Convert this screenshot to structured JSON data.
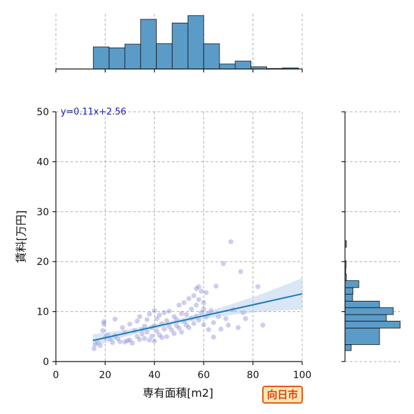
{
  "chart_data": {
    "type": "scatter",
    "xlabel": "専有面積[m2]",
    "ylabel": "賃料[万円]",
    "xlim": [
      0,
      100
    ],
    "ylim": [
      0,
      50
    ],
    "x_ticks": [
      0,
      20,
      40,
      60,
      80,
      100
    ],
    "y_ticks": [
      0,
      10,
      20,
      30,
      40,
      50
    ],
    "grid": true,
    "regression": {
      "label": "y=0.11x+2.56",
      "slope": 0.11,
      "intercept": 2.56,
      "x_range": [
        15,
        100
      ],
      "color": "#1f77b4",
      "band_color": "#a9c8e8"
    },
    "point_color": "#5a5ac8",
    "points": [
      [
        15.5,
        2.6
      ],
      [
        16,
        3.5
      ],
      [
        17,
        3.8
      ],
      [
        18,
        3.2
      ],
      [
        19,
        6.2
      ],
      [
        19.5,
        7.5
      ],
      [
        19.5,
        8.0
      ],
      [
        20,
        4.8
      ],
      [
        21,
        5.3
      ],
      [
        22,
        4.5
      ],
      [
        23,
        3.8
      ],
      [
        24,
        5.2
      ],
      [
        24,
        8.5
      ],
      [
        25,
        4.6
      ],
      [
        26,
        4.0
      ],
      [
        27,
        6.8
      ],
      [
        28,
        3.9
      ],
      [
        28,
        5.8
      ],
      [
        29,
        4.2
      ],
      [
        30,
        7.5
      ],
      [
        30,
        4.3
      ],
      [
        31,
        3.7
      ],
      [
        32,
        6.2
      ],
      [
        33,
        5.0
      ],
      [
        33,
        8.1
      ],
      [
        34,
        4.4
      ],
      [
        34,
        9.0
      ],
      [
        35,
        6.4
      ],
      [
        35,
        5.5
      ],
      [
        36,
        7.1
      ],
      [
        36,
        4.6
      ],
      [
        37,
        8.4
      ],
      [
        37,
        5.9
      ],
      [
        38,
        9.5
      ],
      [
        38,
        4.3
      ],
      [
        39,
        6.8
      ],
      [
        39,
        5.1
      ],
      [
        40,
        10.2
      ],
      [
        40,
        7.2
      ],
      [
        40,
        4.1
      ],
      [
        41,
        8.6
      ],
      [
        41,
        6.1
      ],
      [
        42,
        9.3
      ],
      [
        42,
        5.3
      ],
      [
        43,
        7.6
      ],
      [
        43,
        4.8
      ],
      [
        44,
        9.8
      ],
      [
        44,
        6.5
      ],
      [
        45,
        8.2
      ],
      [
        45,
        5.0
      ],
      [
        46,
        10.1
      ],
      [
        46,
        7.0
      ],
      [
        47,
        6.3
      ],
      [
        48,
        9.0
      ],
      [
        48,
        5.6
      ],
      [
        49,
        8.4
      ],
      [
        49,
        7.2
      ],
      [
        50,
        11.3
      ],
      [
        50,
        6.7
      ],
      [
        51,
        9.6
      ],
      [
        51,
        5.9
      ],
      [
        52,
        11.8
      ],
      [
        52,
        8.0
      ],
      [
        53,
        7.3
      ],
      [
        53,
        9.4
      ],
      [
        54,
        12.6
      ],
      [
        54,
        6.8
      ],
      [
        55,
        10.5
      ],
      [
        55,
        8.7
      ],
      [
        56,
        13.2
      ],
      [
        56,
        7.6
      ],
      [
        57,
        14.6
      ],
      [
        57,
        9.1
      ],
      [
        57,
        11.3
      ],
      [
        58,
        15.0
      ],
      [
        58,
        8.3
      ],
      [
        58,
        12.4
      ],
      [
        59,
        14.1
      ],
      [
        59,
        9.8
      ],
      [
        60,
        11.8
      ],
      [
        60,
        7.4
      ],
      [
        60,
        10.5
      ],
      [
        61,
        13.8
      ],
      [
        61,
        8.9
      ],
      [
        62,
        6.4
      ],
      [
        62,
        9.6
      ],
      [
        63,
        10.2
      ],
      [
        64,
        4.9
      ],
      [
        64,
        7.8
      ],
      [
        65,
        15.1
      ],
      [
        66,
        9.0
      ],
      [
        67,
        6.5
      ],
      [
        68,
        19.6
      ],
      [
        69,
        8.6
      ],
      [
        70,
        7.3
      ],
      [
        71,
        24.0
      ],
      [
        72,
        10.4
      ],
      [
        74,
        6.8
      ],
      [
        75,
        18.0
      ],
      [
        76,
        9.8
      ],
      [
        77,
        8.6
      ],
      [
        82,
        15.0
      ],
      [
        84,
        7.3
      ]
    ],
    "top_histogram": {
      "axis_range": [
        0,
        100
      ],
      "bin_edges": [
        15.2,
        21.6,
        28.0,
        34.4,
        40.8,
        47.2,
        53.6,
        60.0,
        66.4,
        72.8,
        79.2,
        85.6,
        92.0,
        98.4,
        100
      ],
      "counts": [
        12,
        11.5,
        13.5,
        27,
        13.8,
        25,
        29,
        13.7,
        2.7,
        4.3,
        1.2,
        0.3,
        0.6,
        0
      ],
      "count_max": 30
    },
    "right_histogram": {
      "axis_range": [
        0,
        50
      ],
      "bin_edges": [
        2.2,
        3.4,
        6.7,
        8.1,
        9.4,
        10.8,
        12.1,
        13.5,
        14.8,
        16.2,
        17.5,
        18.8,
        20.2,
        21.5,
        22.9,
        24.2
      ],
      "counts": [
        1.8,
        10,
        16,
        12,
        14,
        10,
        2.2,
        2.3,
        4,
        0.4,
        0.2,
        0.3,
        0,
        0,
        0.4
      ],
      "count_max": 16
    }
  },
  "badge": {
    "text": "向日市",
    "bg": "#fde7b0",
    "border": "#e05a1e",
    "color": "#d6451b"
  }
}
